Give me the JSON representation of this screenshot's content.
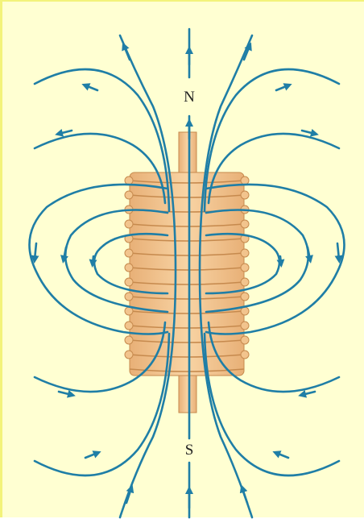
{
  "figure": {
    "north_label": "N",
    "south_label": "S"
  },
  "colors": {
    "background": "#ffffd2",
    "field_line": "#1f7ea6",
    "coil_fill": "#f2c48d",
    "coil_stroke": "#c68a4e"
  }
}
